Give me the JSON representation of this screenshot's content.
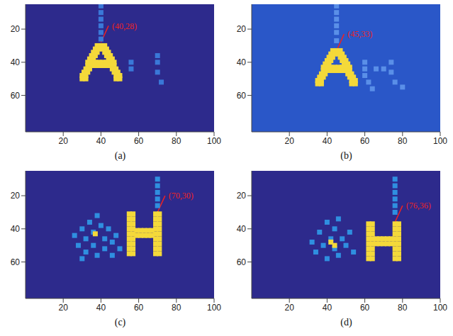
{
  "chart_data": [
    {
      "type": "scatter",
      "caption": "(a)",
      "xlim": [
        0,
        100
      ],
      "xticks": [
        20,
        40,
        60,
        80,
        100
      ],
      "ylim": [
        5,
        82
      ],
      "yticks": [
        20,
        40,
        60
      ],
      "series": [
        {
          "color": "#f4d93a",
          "points": [
            [
              38,
              30
            ],
            [
              40,
              30
            ],
            [
              42,
              30
            ],
            [
              37,
              32
            ],
            [
              39,
              32
            ],
            [
              41,
              32
            ],
            [
              43,
              32
            ],
            [
              36,
              34
            ],
            [
              38,
              34
            ],
            [
              42,
              34
            ],
            [
              44,
              34
            ],
            [
              35,
              36
            ],
            [
              37,
              36
            ],
            [
              43,
              36
            ],
            [
              45,
              36
            ],
            [
              34,
              38
            ],
            [
              36,
              38
            ],
            [
              44,
              38
            ],
            [
              46,
              38
            ],
            [
              33,
              40
            ],
            [
              35,
              40
            ],
            [
              37,
              40
            ],
            [
              39,
              40
            ],
            [
              41,
              40
            ],
            [
              43,
              40
            ],
            [
              45,
              40
            ],
            [
              47,
              40
            ],
            [
              33,
              42
            ],
            [
              35,
              42
            ],
            [
              37,
              42
            ],
            [
              39,
              42
            ],
            [
              41,
              42
            ],
            [
              43,
              42
            ],
            [
              45,
              42
            ],
            [
              47,
              42
            ],
            [
              32,
              44
            ],
            [
              34,
              44
            ],
            [
              46,
              44
            ],
            [
              48,
              44
            ],
            [
              31,
              46
            ],
            [
              33,
              46
            ],
            [
              47,
              46
            ],
            [
              49,
              46
            ],
            [
              30,
              48
            ],
            [
              32,
              48
            ],
            [
              48,
              48
            ],
            [
              50,
              48
            ],
            [
              30,
              50
            ],
            [
              32,
              50
            ],
            [
              48,
              50
            ],
            [
              50,
              50
            ]
          ]
        },
        {
          "color": "#3a78d8",
          "points": [
            [
              40,
              6
            ],
            [
              40,
              10
            ],
            [
              40,
              14
            ],
            [
              40,
              18
            ],
            [
              40,
              22
            ],
            [
              40,
              26
            ],
            [
              56,
              40
            ],
            [
              56,
              44
            ],
            [
              70,
              36
            ],
            [
              70,
              40
            ],
            [
              70,
              46
            ],
            [
              72,
              52
            ]
          ]
        }
      ],
      "annotations": [
        {
          "text": "(40,28)",
          "x": 40,
          "y": 28
        }
      ]
    },
    {
      "type": "scatter",
      "caption": "(b)",
      "xlim": [
        0,
        100
      ],
      "xticks": [
        20,
        40,
        60,
        80,
        100
      ],
      "ylim": [
        5,
        82
      ],
      "yticks": [
        20,
        40,
        60
      ],
      "series": [
        {
          "color": "#f4d93a",
          "points": [
            [
              43,
              33
            ],
            [
              45,
              33
            ],
            [
              47,
              33
            ],
            [
              42,
              35
            ],
            [
              44,
              35
            ],
            [
              46,
              35
            ],
            [
              48,
              35
            ],
            [
              41,
              37
            ],
            [
              43,
              37
            ],
            [
              47,
              37
            ],
            [
              49,
              37
            ],
            [
              40,
              39
            ],
            [
              42,
              39
            ],
            [
              48,
              39
            ],
            [
              50,
              39
            ],
            [
              39,
              41
            ],
            [
              41,
              41
            ],
            [
              49,
              41
            ],
            [
              51,
              41
            ],
            [
              38,
              43
            ],
            [
              40,
              43
            ],
            [
              42,
              43
            ],
            [
              44,
              43
            ],
            [
              46,
              43
            ],
            [
              48,
              43
            ],
            [
              50,
              43
            ],
            [
              52,
              43
            ],
            [
              38,
              45
            ],
            [
              40,
              45
            ],
            [
              42,
              45
            ],
            [
              44,
              45
            ],
            [
              46,
              45
            ],
            [
              48,
              45
            ],
            [
              50,
              45
            ],
            [
              52,
              45
            ],
            [
              37,
              47
            ],
            [
              39,
              47
            ],
            [
              51,
              47
            ],
            [
              53,
              47
            ],
            [
              36,
              49
            ],
            [
              38,
              49
            ],
            [
              52,
              49
            ],
            [
              54,
              49
            ],
            [
              35,
              51
            ],
            [
              37,
              51
            ],
            [
              53,
              51
            ],
            [
              55,
              51
            ],
            [
              35,
              53
            ],
            [
              37,
              53
            ],
            [
              53,
              53
            ],
            [
              55,
              53
            ]
          ]
        },
        {
          "color": "#5a8fe8",
          "points": [
            [
              45,
              6
            ],
            [
              45,
              10
            ],
            [
              45,
              14
            ],
            [
              45,
              18
            ],
            [
              45,
              22
            ],
            [
              45,
              27
            ],
            [
              60,
              40
            ],
            [
              60,
              44
            ],
            [
              60,
              48
            ],
            [
              62,
              52
            ],
            [
              66,
              44
            ],
            [
              70,
              44
            ],
            [
              74,
              40
            ],
            [
              74,
              46
            ],
            [
              76,
              52
            ],
            [
              80,
              55
            ],
            [
              64,
              56
            ]
          ]
        }
      ],
      "annotations": [
        {
          "text": "(45,33)",
          "x": 45,
          "y": 33
        }
      ]
    },
    {
      "type": "scatter",
      "caption": "(c)",
      "xlim": [
        0,
        100
      ],
      "xticks": [
        20,
        40,
        60,
        80,
        100
      ],
      "ylim": [
        5,
        82
      ],
      "yticks": [
        20,
        40,
        60
      ],
      "series": [
        {
          "color": "#2f8fe0",
          "points": [
            [
              26,
              44
            ],
            [
              28,
              50
            ],
            [
              30,
              40
            ],
            [
              32,
              46
            ],
            [
              32,
              54
            ],
            [
              34,
              36
            ],
            [
              36,
              42
            ],
            [
              36,
              50
            ],
            [
              38,
              56
            ],
            [
              40,
              38
            ],
            [
              42,
              46
            ],
            [
              42,
              52
            ],
            [
              44,
              40
            ],
            [
              46,
              48
            ],
            [
              46,
              56
            ],
            [
              48,
              44
            ],
            [
              50,
              52
            ],
            [
              30,
              58
            ],
            [
              38,
              32
            ],
            [
              70,
              10
            ],
            [
              70,
              14
            ],
            [
              70,
              18
            ],
            [
              70,
              22
            ],
            [
              70,
              26
            ]
          ]
        },
        {
          "color": "#f4d93a",
          "points": [
            [
              37,
              43
            ],
            [
              55,
              31
            ],
            [
              57,
              31
            ],
            [
              55,
              34
            ],
            [
              57,
              34
            ],
            [
              55,
              37
            ],
            [
              57,
              37
            ],
            [
              55,
              40
            ],
            [
              57,
              40
            ],
            [
              55,
              43
            ],
            [
              57,
              43
            ],
            [
              55,
              46
            ],
            [
              57,
              46
            ],
            [
              55,
              49
            ],
            [
              57,
              49
            ],
            [
              55,
              52
            ],
            [
              57,
              52
            ],
            [
              55,
              55
            ],
            [
              57,
              55
            ],
            [
              69,
              31
            ],
            [
              71,
              31
            ],
            [
              69,
              34
            ],
            [
              71,
              34
            ],
            [
              69,
              37
            ],
            [
              71,
              37
            ],
            [
              69,
              40
            ],
            [
              71,
              40
            ],
            [
              69,
              43
            ],
            [
              71,
              43
            ],
            [
              69,
              46
            ],
            [
              71,
              46
            ],
            [
              69,
              49
            ],
            [
              71,
              49
            ],
            [
              69,
              52
            ],
            [
              71,
              52
            ],
            [
              69,
              55
            ],
            [
              71,
              55
            ],
            [
              59,
              41
            ],
            [
              61,
              41
            ],
            [
              63,
              41
            ],
            [
              65,
              41
            ],
            [
              67,
              41
            ],
            [
              59,
              44
            ],
            [
              61,
              44
            ],
            [
              63,
              44
            ],
            [
              65,
              44
            ],
            [
              67,
              44
            ]
          ]
        }
      ],
      "annotations": [
        {
          "text": "(70,30)",
          "x": 70,
          "y": 30
        }
      ]
    },
    {
      "type": "scatter",
      "caption": "(d)",
      "xlim": [
        0,
        100
      ],
      "xticks": [
        20,
        40,
        60,
        80,
        100
      ],
      "ylim": [
        5,
        82
      ],
      "yticks": [
        20,
        40,
        60
      ],
      "series": [
        {
          "color": "#2f8fe0",
          "points": [
            [
              32,
              48
            ],
            [
              34,
              54
            ],
            [
              36,
              42
            ],
            [
              38,
              50
            ],
            [
              40,
              36
            ],
            [
              40,
              58
            ],
            [
              42,
              46
            ],
            [
              44,
              52
            ],
            [
              44,
              40
            ],
            [
              46,
              56
            ],
            [
              48,
              46
            ],
            [
              50,
              50
            ],
            [
              52,
              42
            ],
            [
              54,
              54
            ],
            [
              46,
              34
            ],
            [
              76,
              10
            ],
            [
              76,
              14
            ],
            [
              76,
              18
            ],
            [
              76,
              22
            ],
            [
              76,
              26
            ],
            [
              76,
              30
            ]
          ]
        },
        {
          "color": "#f4d93a",
          "points": [
            [
              42,
              48
            ],
            [
              44,
              50
            ],
            [
              62,
              37
            ],
            [
              64,
              37
            ],
            [
              62,
              40
            ],
            [
              64,
              40
            ],
            [
              62,
              43
            ],
            [
              64,
              43
            ],
            [
              62,
              46
            ],
            [
              64,
              46
            ],
            [
              62,
              49
            ],
            [
              64,
              49
            ],
            [
              62,
              52
            ],
            [
              64,
              52
            ],
            [
              62,
              55
            ],
            [
              64,
              55
            ],
            [
              62,
              58
            ],
            [
              64,
              58
            ],
            [
              76,
              37
            ],
            [
              78,
              37
            ],
            [
              76,
              40
            ],
            [
              78,
              40
            ],
            [
              76,
              43
            ],
            [
              78,
              43
            ],
            [
              76,
              46
            ],
            [
              78,
              46
            ],
            [
              76,
              49
            ],
            [
              78,
              49
            ],
            [
              76,
              52
            ],
            [
              78,
              52
            ],
            [
              76,
              55
            ],
            [
              78,
              55
            ],
            [
              76,
              58
            ],
            [
              78,
              58
            ],
            [
              66,
              46
            ],
            [
              68,
              46
            ],
            [
              70,
              46
            ],
            [
              72,
              46
            ],
            [
              74,
              46
            ],
            [
              66,
              49
            ],
            [
              68,
              49
            ],
            [
              70,
              49
            ],
            [
              72,
              49
            ],
            [
              74,
              49
            ]
          ]
        }
      ],
      "annotations": [
        {
          "text": "(76,36)",
          "x": 76,
          "y": 36
        }
      ]
    }
  ]
}
